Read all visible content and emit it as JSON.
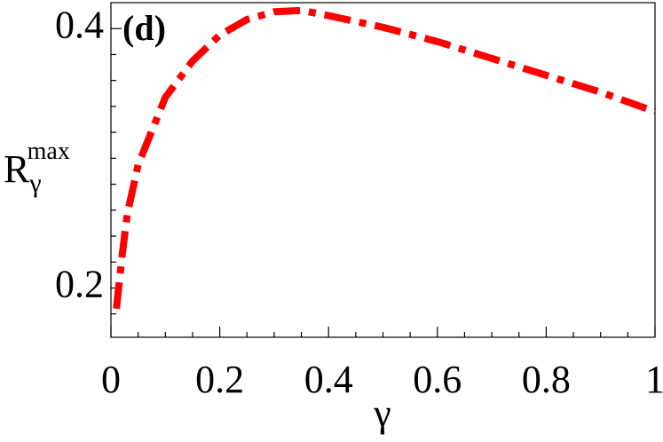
{
  "chart_data": {
    "type": "line",
    "annotation": "(d)",
    "xlabel": "γ",
    "ylabel": {
      "base": "R",
      "sub": "γ",
      "sup": "max"
    },
    "x": [
      0.01,
      0.02,
      0.03,
      0.05,
      0.1,
      0.15,
      0.2,
      0.25,
      0.3,
      0.35,
      0.4,
      0.5,
      0.6,
      0.7,
      0.8,
      0.9,
      1.0
    ],
    "series": [
      {
        "color": "#ff0000",
        "values": [
          0.184,
          0.223,
          0.257,
          0.295,
          0.347,
          0.375,
          0.395,
          0.407,
          0.413,
          0.414,
          0.41,
          0.401,
          0.39,
          0.377,
          0.364,
          0.351,
          0.336
        ]
      }
    ],
    "xlim": [
      0,
      1
    ],
    "xticks": [
      0,
      0.2,
      0.4,
      0.6,
      0.8,
      1
    ],
    "minor_xticks": [
      0.05,
      0.1,
      0.15,
      0.25,
      0.3,
      0.35,
      0.45,
      0.5,
      0.55,
      0.65,
      0.7,
      0.75,
      0.85,
      0.9,
      0.95
    ],
    "ylim": [
      0.162,
      0.42
    ],
    "yticks": [
      0.2,
      0.4
    ],
    "minor_yticks": [
      0.18,
      0.22,
      0.24,
      0.26,
      0.28,
      0.3,
      0.32,
      0.34,
      0.36,
      0.38
    ]
  }
}
